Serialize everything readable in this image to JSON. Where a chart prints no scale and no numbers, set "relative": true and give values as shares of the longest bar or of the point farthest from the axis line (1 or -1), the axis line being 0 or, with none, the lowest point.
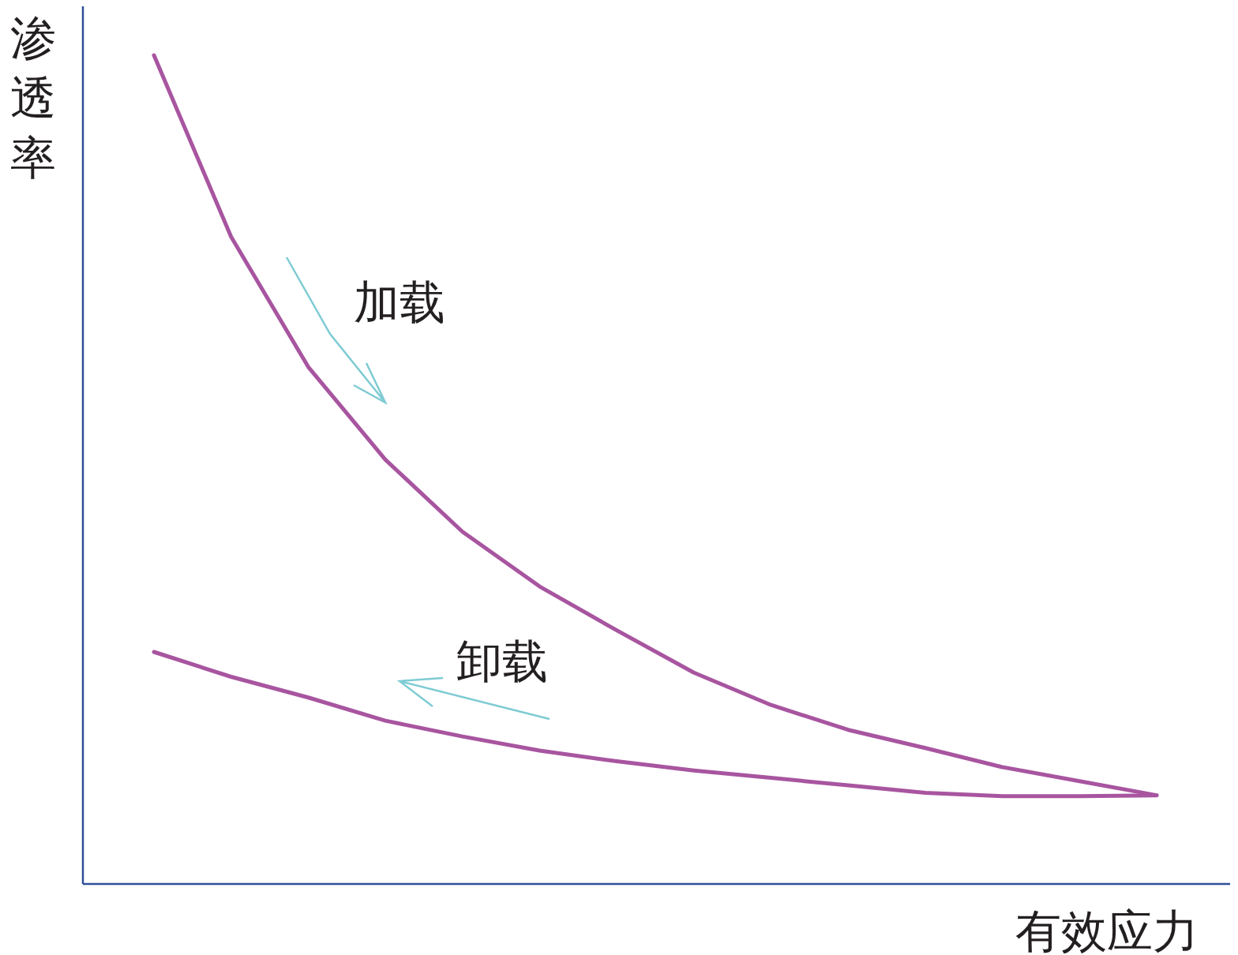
{
  "chart_data": {
    "type": "line",
    "xlabel": "有效应力",
    "ylabel": "渗透率",
    "relative": true,
    "categories": [
      null,
      null,
      null,
      null,
      null,
      null,
      null,
      null,
      null,
      null,
      null,
      null,
      null,
      null
    ],
    "series": [
      {
        "name": "加载",
        "color": "#a855a0",
        "values": [
          1.0,
          0.781,
          0.624,
          0.512,
          0.425,
          0.359,
          0.306,
          0.255,
          0.216,
          0.186,
          0.164,
          0.141,
          0.124,
          0.107
        ]
      },
      {
        "name": "卸载",
        "color": "#a855a0",
        "values": [
          0.28,
          0.25,
          0.225,
          0.197,
          0.178,
          0.161,
          0.148,
          0.137,
          0.128,
          0.119,
          0.11,
          0.106,
          0.106,
          0.107
        ]
      }
    ]
  }
}
